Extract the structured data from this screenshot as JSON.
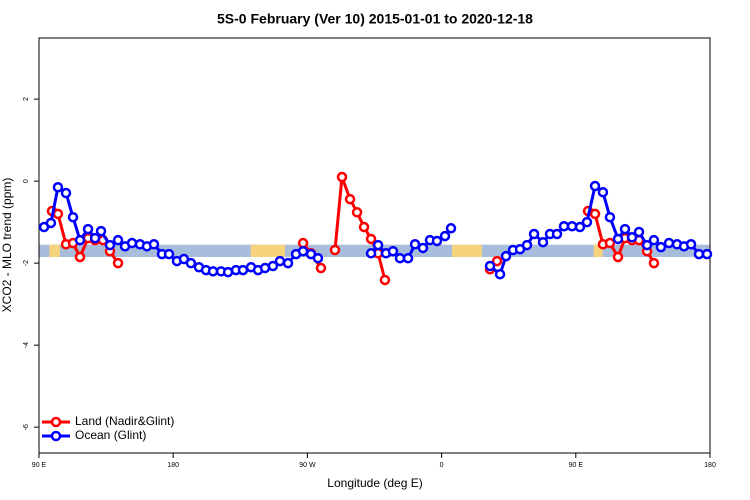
{
  "chart_data": {
    "type": "line",
    "title": "5S-0 February (Ver 10)   2015-01-01 to 2020-12-18",
    "xlabel": "Longitude (deg E)",
    "ylabel": "XCO2 - MLO trend (ppm)",
    "xlim": [
      90,
      540
    ],
    "ylim": [
      -6.63,
      3.49
    ],
    "xticks": [
      {
        "value": 90,
        "label": "90 E"
      },
      180,
      {
        "value": 270,
        "label": "90 W"
      },
      {
        "value": 360,
        "label": "0"
      },
      {
        "value": 450,
        "label": "90 E"
      },
      {
        "value": 540,
        "label": "180"
      }
    ],
    "yticks": [
      -6,
      -4,
      -2,
      0,
      2
    ],
    "legend": "bottom-left",
    "band": {
      "ylim": [
        -1.85,
        -1.55
      ],
      "color": "#a8bddb",
      "land_color": "#f6d47d",
      "land_x": [
        [
          97,
          104
        ],
        [
          232,
          255
        ],
        [
          367,
          387
        ],
        [
          462,
          468
        ]
      ]
    },
    "series": [
      {
        "name": "Land (Nadir&Glint)",
        "color": "#ff0000",
        "x": [
          98.7,
          102.7,
          108.1,
          112.8,
          117.5,
          122.9,
          127.6,
          132.9,
          137.6,
          143.0,
          null,
          267.1,
          272.4,
          279.1,
          null,
          288.5,
          293.2,
          298.6,
          303.3,
          308.0,
          312.7,
          317.4,
          322.0,
          null,
          392.5,
          397.2,
          null,
          458.2,
          462.9,
          468.2,
          472.9,
          478.3,
          483.0,
          487.7,
          492.4,
          497.8,
          502.4
        ],
        "values": [
          -0.73,
          -0.8,
          -1.54,
          -1.51,
          -1.85,
          -1.39,
          -1.44,
          -1.44,
          -1.71,
          -2.0,
          null,
          -1.51,
          -1.76,
          -2.12,
          null,
          -1.68,
          0.1,
          -0.44,
          -0.76,
          -1.12,
          -1.41,
          -1.76,
          -2.41,
          null,
          -2.15,
          -1.95,
          null,
          -0.73,
          -0.8,
          -1.54,
          -1.51,
          -1.85,
          -1.39,
          -1.44,
          -1.44,
          -1.71,
          -2.0
        ]
      },
      {
        "name": "Ocean (Glint)",
        "color": "#0000ff",
        "x": [
          93.4,
          98.0,
          102.7,
          108.1,
          112.8,
          117.5,
          122.9,
          127.6,
          131.6,
          137.6,
          143.0,
          147.7,
          152.4,
          157.7,
          162.4,
          167.1,
          172.5,
          177.2,
          182.5,
          187.2,
          191.9,
          197.3,
          202.0,
          206.7,
          212.1,
          216.8,
          222.1,
          226.8,
          232.2,
          236.9,
          241.6,
          246.9,
          251.6,
          257.0,
          262.4,
          267.1,
          272.4,
          277.1,
          null,
          312.7,
          317.4,
          322.7,
          327.4,
          332.1,
          337.5,
          342.2,
          347.5,
          352.2,
          356.9,
          362.3,
          366.3,
          null,
          392.5,
          399.2,
          403.2,
          407.9,
          412.6,
          417.3,
          422.0,
          428.0,
          432.7,
          437.4,
          442.1,
          447.5,
          452.8,
          457.5,
          462.9,
          468.2,
          472.9,
          478.3,
          483.0,
          487.7,
          492.4,
          497.8,
          502.4,
          507.1,
          512.5,
          517.9,
          522.6,
          527.3,
          532.6,
          538.0
        ],
        "values": [
          -1.12,
          -1.02,
          -0.15,
          -0.29,
          -0.88,
          -1.44,
          -1.17,
          -1.39,
          -1.22,
          -1.56,
          -1.44,
          -1.59,
          -1.51,
          -1.54,
          -1.59,
          -1.54,
          -1.78,
          -1.78,
          -1.95,
          -1.9,
          -2.0,
          -2.1,
          -2.17,
          -2.2,
          -2.2,
          -2.22,
          -2.17,
          -2.17,
          -2.1,
          -2.17,
          -2.12,
          -2.07,
          -1.95,
          -2.0,
          -1.78,
          -1.71,
          -1.78,
          -1.88,
          null,
          -1.76,
          -1.56,
          -1.76,
          -1.71,
          -1.88,
          -1.88,
          -1.54,
          -1.63,
          -1.44,
          -1.46,
          -1.34,
          -1.15,
          null,
          -2.07,
          -2.27,
          -1.83,
          -1.68,
          -1.66,
          -1.56,
          -1.29,
          -1.49,
          -1.29,
          -1.29,
          -1.1,
          -1.1,
          -1.12,
          -1.0,
          -0.12,
          -0.27,
          -0.88,
          -1.41,
          -1.17,
          -1.37,
          -1.24,
          -1.56,
          -1.44,
          -1.61,
          -1.51,
          -1.54,
          -1.59,
          -1.54,
          -1.78,
          -1.78
        ]
      }
    ]
  }
}
